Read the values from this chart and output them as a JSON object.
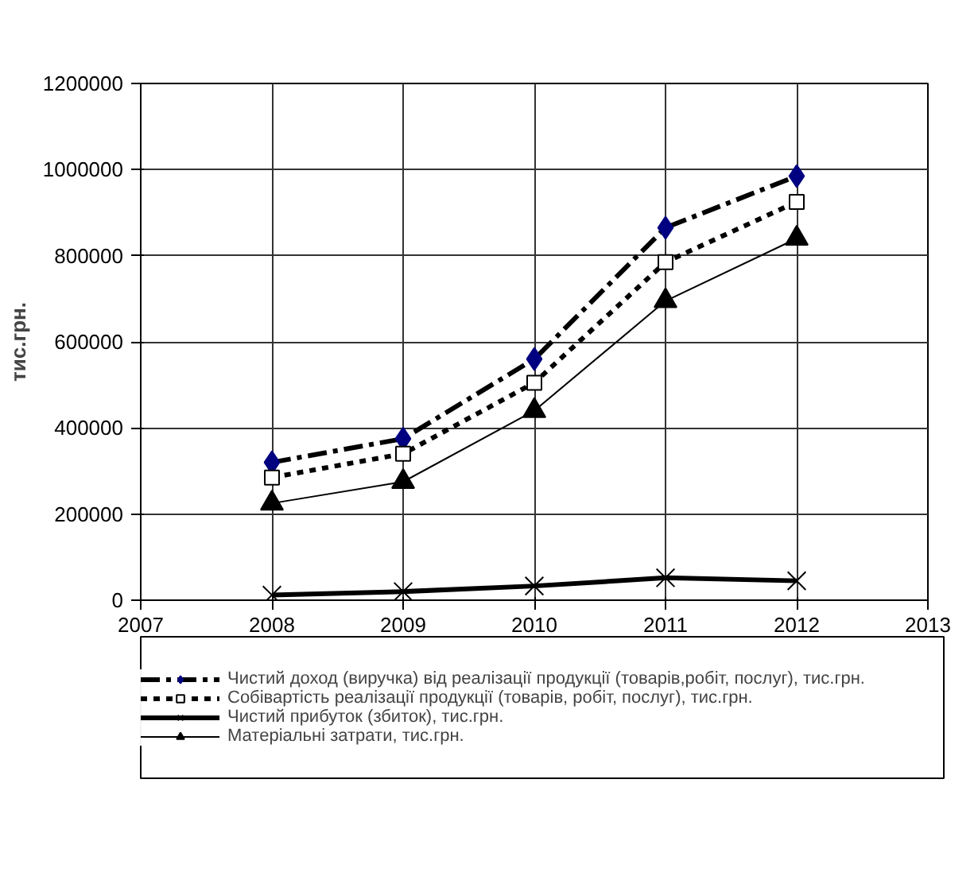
{
  "chart_data": {
    "type": "line",
    "ylabel": "тис.грн.",
    "x": [
      2008,
      2009,
      2010,
      2011,
      2012
    ],
    "xlim": [
      2007,
      2013
    ],
    "xticks": [
      2007,
      2008,
      2009,
      2010,
      2011,
      2012,
      2013
    ],
    "ylim": [
      0,
      1200000
    ],
    "yticks": [
      0,
      200000,
      400000,
      600000,
      800000,
      1000000,
      1200000
    ],
    "grid": true,
    "legend": "bottom",
    "series": [
      {
        "name": "Чистий доход (виручка) від реалізації продукції (товарів,робіт, послуг), тис.грн.",
        "color": "#000080",
        "marker": "diamond",
        "line_style": "dashed",
        "values": [
          320000,
          375000,
          560000,
          865000,
          985000
        ]
      },
      {
        "name": "Собівартість реалізації продукції (товарів, робіт, послуг), тис.грн.",
        "color": "#000000",
        "marker": "square",
        "line_style": "dotted",
        "values": [
          285000,
          340000,
          505000,
          785000,
          925000
        ]
      },
      {
        "name": "Чистий прибуток (збиток), тис.грн.",
        "color": "#000000",
        "marker": "cross",
        "line_style": "solid",
        "values": [
          12000,
          20000,
          33000,
          52000,
          45000
        ]
      },
      {
        "name": "Матеріальні затрати, тис.грн.",
        "color": "#000000",
        "marker": "triangle",
        "line_style": "solid",
        "values": [
          225000,
          275000,
          440000,
          695000,
          840000
        ]
      }
    ]
  }
}
